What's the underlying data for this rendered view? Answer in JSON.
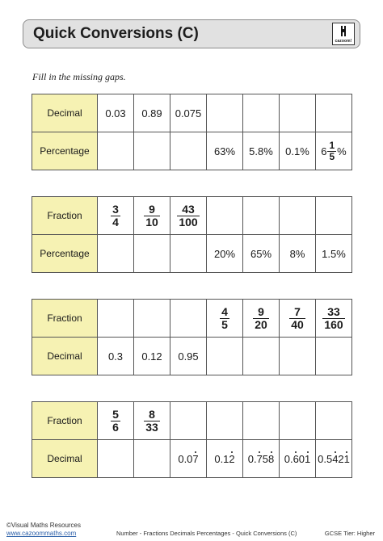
{
  "header": {
    "title": "Quick Conversions (C)",
    "logo_text": "cazoom!"
  },
  "instruction": "Fill in the missing gaps.",
  "tables": [
    {
      "top_label": "Decimal",
      "bottom_label": "Percentage",
      "top": [
        {
          "t": "text",
          "v": "0.03"
        },
        {
          "t": "text",
          "v": "0.89"
        },
        {
          "t": "text",
          "v": "0.075"
        },
        {
          "t": "empty"
        },
        {
          "t": "empty"
        },
        {
          "t": "empty"
        },
        {
          "t": "empty"
        }
      ],
      "bottom": [
        {
          "t": "empty"
        },
        {
          "t": "empty"
        },
        {
          "t": "empty"
        },
        {
          "t": "text",
          "v": "63%"
        },
        {
          "t": "text",
          "v": "5.8%"
        },
        {
          "t": "text",
          "v": "0.1%"
        },
        {
          "t": "mixed",
          "whole": "6",
          "num": "1",
          "den": "5",
          "suffix": "%"
        }
      ]
    },
    {
      "top_label": "Fraction",
      "bottom_label": "Percentage",
      "top": [
        {
          "t": "frac",
          "num": "3",
          "den": "4"
        },
        {
          "t": "frac",
          "num": "9",
          "den": "10"
        },
        {
          "t": "frac",
          "num": "43",
          "den": "100"
        },
        {
          "t": "empty"
        },
        {
          "t": "empty"
        },
        {
          "t": "empty"
        },
        {
          "t": "empty"
        }
      ],
      "bottom": [
        {
          "t": "empty"
        },
        {
          "t": "empty"
        },
        {
          "t": "empty"
        },
        {
          "t": "text",
          "v": "20%"
        },
        {
          "t": "text",
          "v": "65%"
        },
        {
          "t": "text",
          "v": "8%"
        },
        {
          "t": "text",
          "v": "1.5%"
        }
      ]
    },
    {
      "top_label": "Fraction",
      "bottom_label": "Decimal",
      "top": [
        {
          "t": "empty"
        },
        {
          "t": "empty"
        },
        {
          "t": "empty"
        },
        {
          "t": "frac",
          "num": "4",
          "den": "5"
        },
        {
          "t": "frac",
          "num": "9",
          "den": "20"
        },
        {
          "t": "frac",
          "num": "7",
          "den": "40"
        },
        {
          "t": "frac",
          "num": "33",
          "den": "160"
        }
      ],
      "bottom": [
        {
          "t": "text",
          "v": "0.3"
        },
        {
          "t": "text",
          "v": "0.12"
        },
        {
          "t": "text",
          "v": "0.95"
        },
        {
          "t": "empty"
        },
        {
          "t": "empty"
        },
        {
          "t": "empty"
        },
        {
          "t": "empty"
        }
      ]
    },
    {
      "top_label": "Fraction",
      "bottom_label": "Decimal",
      "top": [
        {
          "t": "frac",
          "num": "5",
          "den": "6"
        },
        {
          "t": "frac",
          "num": "8",
          "den": "33"
        },
        {
          "t": "empty"
        },
        {
          "t": "empty"
        },
        {
          "t": "empty"
        },
        {
          "t": "empty"
        },
        {
          "t": "empty"
        }
      ],
      "bottom": [
        {
          "t": "empty"
        },
        {
          "t": "empty"
        },
        {
          "t": "recur",
          "parts": [
            {
              "s": "0.0"
            },
            {
              "s": "7",
              "dot": true
            }
          ]
        },
        {
          "t": "recur",
          "parts": [
            {
              "s": "0.1"
            },
            {
              "s": "2",
              "dot": true
            }
          ]
        },
        {
          "t": "recur",
          "parts": [
            {
              "s": "0."
            },
            {
              "s": "7",
              "dot": true
            },
            {
              "s": "5"
            },
            {
              "s": "8",
              "dot": true
            }
          ]
        },
        {
          "t": "recur",
          "parts": [
            {
              "s": "0."
            },
            {
              "s": "6",
              "dot": true
            },
            {
              "s": "0"
            },
            {
              "s": "1",
              "dot": true
            }
          ]
        },
        {
          "t": "recur",
          "parts": [
            {
              "s": "0.5"
            },
            {
              "s": "4",
              "dot": true
            },
            {
              "s": "2"
            },
            {
              "s": "1",
              "dot": true
            }
          ]
        }
      ]
    }
  ],
  "footer": {
    "copyright": "©Visual Maths Resources",
    "url": "www.cazoommaths.com",
    "center": "Number - Fractions Decimals Percentages - Quick Conversions (C)",
    "right": "GCSE Tier: Higher"
  }
}
